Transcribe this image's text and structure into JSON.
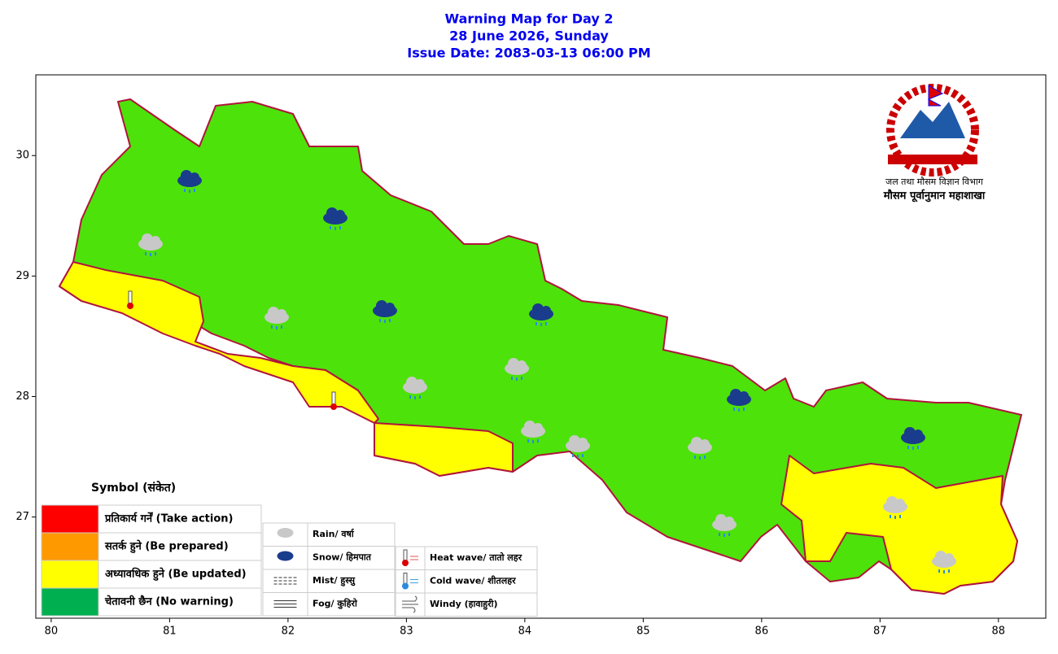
{
  "title": {
    "line1": "Warning Map for Day 2",
    "line2": "28 June 2026, Sunday",
    "line3": "Issue Date: 2083-03-13 06:00 PM"
  },
  "logo": {
    "office": "जल तथा मौसम विज्ञान विभाग",
    "division": "मौसम पूर्वानुमान महाशाखा"
  },
  "axes": {
    "xlim": [
      79.87,
      88.4
    ],
    "ylim": [
      26.16,
      30.67
    ],
    "xticks": [
      80,
      81,
      82,
      83,
      84,
      85,
      86,
      87,
      88
    ],
    "yticks": [
      27,
      28,
      29,
      30
    ]
  },
  "legend": {
    "title": "Symbol (संकेत)",
    "levels": [
      {
        "label": "प्रतिकार्य गर्नें (Take action)",
        "color": "#ff0000"
      },
      {
        "label": "सतर्क हुने (Be prepared)",
        "color": "#ff9900"
      },
      {
        "label": "अध्यावधिक हुने (Be updated)",
        "color": "#ffff00"
      },
      {
        "label": "चेतावनी छैन (No warning)",
        "color": "#00b050"
      }
    ],
    "symbols": [
      "Rain/ वर्षा",
      "Snow/ हिमपात",
      "Mist/ हुस्सु",
      "Fog/ कुहिरो",
      "Heat wave/ तातो लहर",
      "Cold wave/ शीतलहर",
      "Windy (हावाहुरी)"
    ]
  }
}
